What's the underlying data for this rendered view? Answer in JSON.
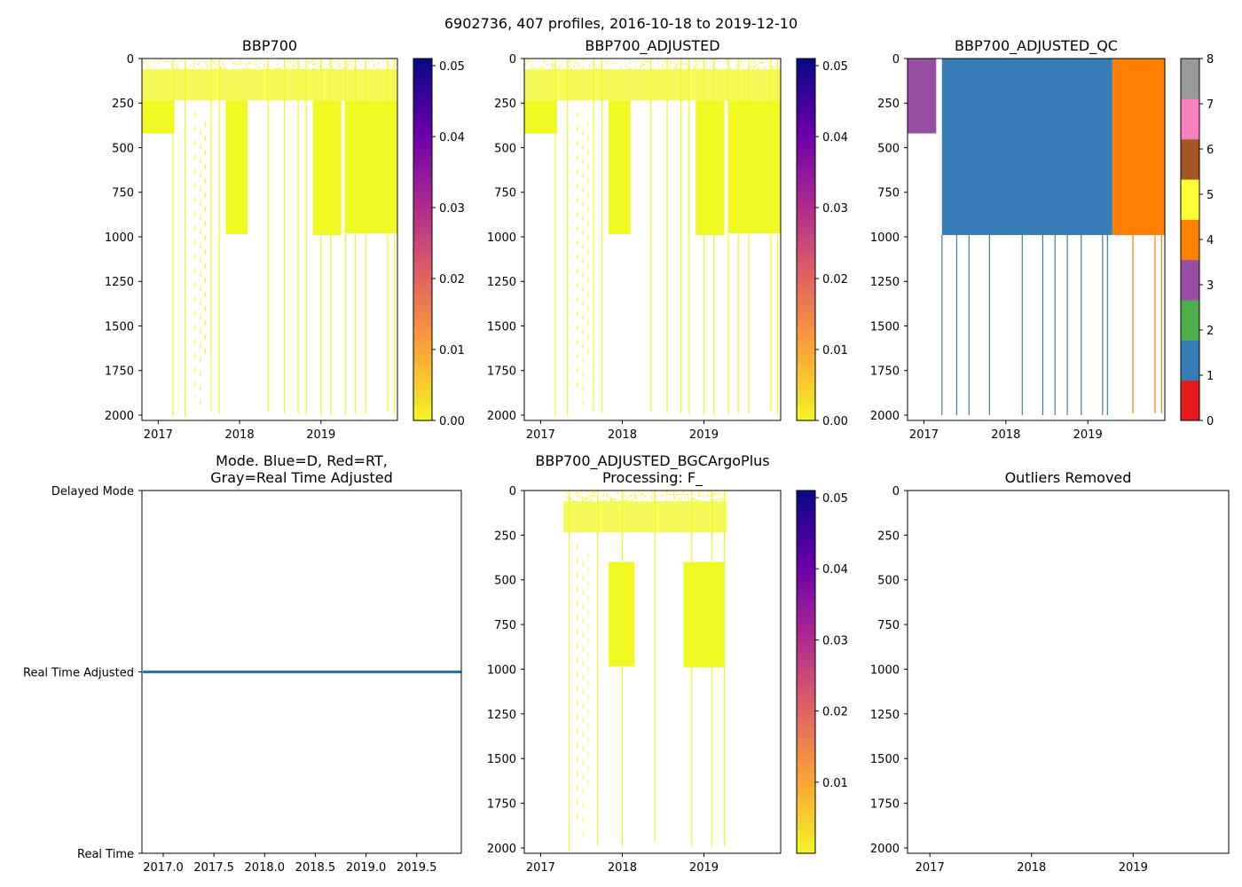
{
  "suptitle": "6902736, 407 profiles, 2016-10-18 to 2019-12-10",
  "colors": {
    "plasma_stops": [
      "#f0f921",
      "#fca636",
      "#e16462",
      "#b12a90",
      "#6a00a8",
      "#0d0887"
    ],
    "qc": [
      "#e41a1c",
      "#377eb8",
      "#4daf4a",
      "#984ea3",
      "#ff7f00",
      "#ffff33",
      "#a65628",
      "#f781bf",
      "#999999"
    ],
    "mode_line": "#1f77b4"
  },
  "chart_data": [
    {
      "id": "bbp700",
      "type": "heatmap",
      "title": "BBP700",
      "xlabel": "",
      "ylabel": "",
      "x_ticks": [
        "2017",
        "2018",
        "2019"
      ],
      "x_tick_values": [
        2017,
        2018,
        2019
      ],
      "xlim": [
        2016.8,
        2019.94
      ],
      "y_ticks": [
        "0",
        "250",
        "500",
        "750",
        "1000",
        "1250",
        "1500",
        "1750",
        "2000"
      ],
      "y_tick_values": [
        0,
        250,
        500,
        750,
        1000,
        1250,
        1500,
        1750,
        2000
      ],
      "ylim": [
        2030,
        0
      ],
      "colorbar": {
        "cmap": "plasma_r",
        "range": [
          0,
          0.051
        ],
        "ticks": [
          "0.00",
          "0.01",
          "0.02",
          "0.03",
          "0.04",
          "0.05"
        ],
        "tick_values": [
          0,
          0.01,
          0.02,
          0.03,
          0.04,
          0.05
        ]
      }
    },
    {
      "id": "bbp700_adjusted",
      "type": "heatmap",
      "title": "BBP700_ADJUSTED",
      "xlabel": "",
      "ylabel": "",
      "x_ticks": [
        "2017",
        "2018",
        "2019"
      ],
      "x_tick_values": [
        2017,
        2018,
        2019
      ],
      "xlim": [
        2016.8,
        2019.94
      ],
      "y_ticks": [
        "0",
        "250",
        "500",
        "750",
        "1000",
        "1250",
        "1500",
        "1750",
        "2000"
      ],
      "y_tick_values": [
        0,
        250,
        500,
        750,
        1000,
        1250,
        1500,
        1750,
        2000
      ],
      "ylim": [
        2030,
        0
      ],
      "colorbar": {
        "cmap": "plasma_r",
        "range": [
          0,
          0.051
        ],
        "ticks": [
          "0.00",
          "0.01",
          "0.02",
          "0.03",
          "0.04",
          "0.05"
        ],
        "tick_values": [
          0,
          0.01,
          0.02,
          0.03,
          0.04,
          0.05
        ]
      }
    },
    {
      "id": "bbp700_adjusted_qc",
      "type": "heatmap",
      "title": "BBP700_ADJUSTED_QC",
      "xlabel": "",
      "ylabel": "",
      "x_ticks": [
        "2017",
        "2018",
        "2019"
      ],
      "x_tick_values": [
        2017,
        2018,
        2019
      ],
      "xlim": [
        2016.8,
        2019.94
      ],
      "y_ticks": [
        "0",
        "250",
        "500",
        "750",
        "1000",
        "1250",
        "1500",
        "1750",
        "2000"
      ],
      "y_tick_values": [
        0,
        250,
        500,
        750,
        1000,
        1250,
        1500,
        1750,
        2000
      ],
      "ylim": [
        2030,
        0
      ],
      "qc_segments": [
        {
          "from": 2016.8,
          "to": 2017.15,
          "qc": 3,
          "depth_to": 420
        },
        {
          "from": 2017.22,
          "to": 2019.3,
          "qc": 1,
          "depth_to": 990
        },
        {
          "from": 2019.3,
          "to": 2019.94,
          "qc": 4,
          "depth_to": 990
        }
      ],
      "colorbar": {
        "cmap": "discrete",
        "range": [
          0,
          8
        ],
        "ticks": [
          "0",
          "1",
          "2",
          "3",
          "4",
          "5",
          "6",
          "7",
          "8"
        ],
        "tick_values": [
          0,
          1,
          2,
          3,
          4,
          5,
          6,
          7,
          8
        ]
      }
    },
    {
      "id": "mode",
      "type": "line",
      "title_lines": [
        "Mode. Blue=D, Red=RT,",
        "Gray=Real Time Adjusted"
      ],
      "xlabel": "",
      "ylabel": "",
      "x_ticks": [
        "2017.0",
        "2017.5",
        "2018.0",
        "2018.5",
        "2019.0",
        "2019.5"
      ],
      "x_tick_values": [
        2017.0,
        2017.5,
        2018.0,
        2018.5,
        2019.0,
        2019.5
      ],
      "xlim": [
        2016.79,
        2019.94
      ],
      "y_ticks": [
        "Delayed Mode",
        "Real Time Adjusted",
        "Real Time"
      ],
      "y_tick_values": [
        2,
        1,
        0
      ],
      "ylim": [
        0,
        2
      ],
      "series": [
        {
          "name": "mode",
          "x": [
            2016.8,
            2019.94
          ],
          "y": [
            1,
            1
          ]
        }
      ]
    },
    {
      "id": "bgcargoplus",
      "type": "heatmap",
      "title_lines": [
        "BBP700_ADJUSTED_BGCArgoPlus",
        "Processing: F_"
      ],
      "xlabel": "",
      "ylabel": "",
      "x_ticks": [
        "2017",
        "2018",
        "2019"
      ],
      "x_tick_values": [
        2017,
        2018,
        2019
      ],
      "xlim": [
        2016.8,
        2019.94
      ],
      "y_ticks": [
        "0",
        "250",
        "500",
        "750",
        "1000",
        "1250",
        "1500",
        "1750",
        "2000"
      ],
      "y_tick_values": [
        0,
        250,
        500,
        750,
        1000,
        1250,
        1500,
        1750,
        2000
      ],
      "ylim": [
        2030,
        0
      ],
      "colorbar": {
        "cmap": "plasma_r",
        "range": [
          0,
          0.051
        ],
        "ticks": [
          "0.01",
          "0.02",
          "0.03",
          "0.04",
          "0.05"
        ],
        "tick_values": [
          0.01,
          0.02,
          0.03,
          0.04,
          0.05
        ]
      }
    },
    {
      "id": "outliers",
      "type": "scatter",
      "title": "Outliers Removed",
      "xlabel": "",
      "ylabel": "",
      "x_ticks": [
        "2017",
        "2018",
        "2019"
      ],
      "x_tick_values": [
        2017,
        2018,
        2019
      ],
      "xlim": [
        2016.78,
        2019.94
      ],
      "y_ticks": [
        "0",
        "250",
        "500",
        "750",
        "1000",
        "1250",
        "1500",
        "1750",
        "2000"
      ],
      "y_tick_values": [
        0,
        250,
        500,
        750,
        1000,
        1250,
        1500,
        1750,
        2000
      ],
      "ylim": [
        2030,
        0
      ],
      "values": []
    }
  ]
}
